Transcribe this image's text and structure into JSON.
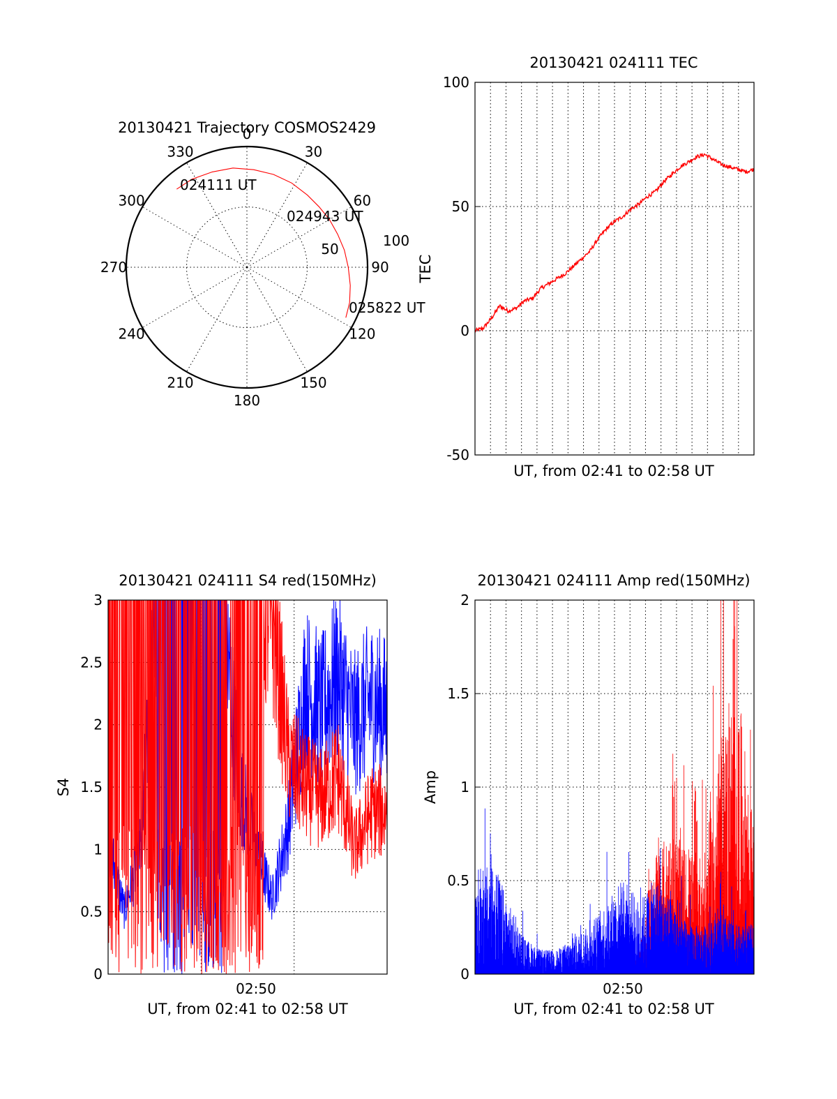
{
  "colors": {
    "red": "#ff0000",
    "blue": "#0000ff",
    "axis": "#000000"
  },
  "chart_data": [
    {
      "id": "polar",
      "type": "scatter",
      "projection": "polar",
      "title": "20130421 Trajectory COSMOS2429",
      "azimuth_labels": [
        "0",
        "30",
        "60",
        "90",
        "120",
        "150",
        "180",
        "210",
        "240",
        "270",
        "300",
        "330"
      ],
      "radial_labels": [
        "50",
        "100"
      ],
      "rlim": [
        0,
        100
      ],
      "track": {
        "azimuth": [
          318,
          328,
          340,
          352,
          4,
          16,
          28,
          40,
          50,
          60,
          70,
          80,
          90,
          100,
          109,
          117
        ],
        "distance": [
          87,
          86,
          84,
          83,
          81,
          80,
          79,
          78,
          78,
          79,
          80,
          82,
          84,
          87,
          90,
          92
        ]
      },
      "annotations": [
        "024111 UT",
        "024943 UT",
        "025822 UT"
      ]
    },
    {
      "id": "tec",
      "type": "line",
      "title": "20130421 024111 TEC",
      "xlabel": "UT, from 02:41 to 02:58 UT",
      "ylabel": "TEC",
      "ylim": [
        -50,
        100
      ],
      "yticks": [
        "100",
        "50",
        "0",
        "-50"
      ],
      "grid": true,
      "series": [
        {
          "x_minutes": [
            0,
            0.5,
            1,
            1.5,
            2,
            2.5,
            3,
            3.5,
            4,
            4.5,
            5,
            5.5,
            6,
            6.5,
            7,
            7.5,
            8,
            8.5,
            9,
            9.5,
            10,
            10.5,
            11,
            11.5,
            12,
            12.5,
            13,
            13.5,
            14,
            14.5,
            15,
            15.5,
            16,
            16.5,
            17
          ],
          "values": [
            0,
            1,
            5,
            10,
            8,
            9,
            12,
            13,
            17,
            19,
            21,
            23,
            26,
            29,
            32,
            37,
            41,
            44,
            46,
            49,
            51,
            54,
            56,
            60,
            63,
            66,
            68,
            70,
            71,
            69,
            67,
            66,
            65,
            64,
            65
          ]
        }
      ]
    },
    {
      "id": "s4",
      "type": "line",
      "title": "20130421 024111 S4 red(150MHz)",
      "xlabel": "UT, from 02:41 to 02:58 UT",
      "ylabel": "S4",
      "ylim": [
        0,
        3
      ],
      "yticks": [
        "3",
        "2.5",
        "2",
        "1.5",
        "1",
        "0.5",
        "0"
      ],
      "xticks": [
        "02:50"
      ],
      "grid": true,
      "series": [
        {
          "color": "red",
          "x_minutes": [
            0,
            1,
            2,
            3,
            4,
            5,
            6,
            7,
            8,
            9,
            10,
            11,
            12,
            13,
            14,
            15,
            16,
            17
          ],
          "values": [
            3,
            3,
            3,
            3,
            3,
            3,
            3,
            3,
            3,
            3,
            2.9,
            1.7,
            1.5,
            1.4,
            1.6,
            1.0,
            1.3,
            1.3
          ]
        },
        {
          "color": "blue",
          "x_minutes": [
            0,
            1,
            2,
            3,
            4,
            5,
            6,
            7,
            8,
            9,
            10,
            11,
            12,
            13,
            14,
            15,
            16,
            17
          ],
          "values": [
            1.05,
            0.5,
            1.0,
            3,
            3,
            3,
            3,
            3,
            1.5,
            1.0,
            0.6,
            1.2,
            2.3,
            2.1,
            2.4,
            2.0,
            2.2,
            2.1
          ]
        }
      ]
    },
    {
      "id": "amp",
      "type": "line",
      "title": "20130421 024111 Amp red(150MHz)",
      "xlabel": "UT, from 02:41 to 02:58 UT",
      "ylabel": "Amp",
      "ylim": [
        0,
        2
      ],
      "yticks": [
        "2",
        "1.5",
        "1",
        "0.5",
        "0"
      ],
      "xticks": [
        "02:50"
      ],
      "grid": true,
      "series": [
        {
          "color": "red",
          "x_minutes": [
            0,
            1,
            2,
            3,
            4,
            5,
            6,
            7,
            8,
            9,
            10,
            11,
            12,
            13,
            14,
            15,
            16,
            17
          ],
          "values": [
            0,
            0,
            0,
            0,
            0,
            0,
            0,
            0,
            0,
            0,
            0.1,
            0.5,
            0.6,
            0.5,
            0.5,
            1.0,
            1.2,
            0.6
          ]
        },
        {
          "color": "blue",
          "x_minutes": [
            0,
            1,
            2,
            3,
            4,
            5,
            6,
            7,
            8,
            9,
            10,
            11,
            12,
            13,
            14,
            15,
            16,
            17
          ],
          "values": [
            0.3,
            0.5,
            0.3,
            0.15,
            0.1,
            0.1,
            0.15,
            0.2,
            0.3,
            0.4,
            0.3,
            0.4,
            0.3,
            0.2,
            0.2,
            0.25,
            0.2,
            0.2
          ]
        }
      ]
    }
  ]
}
